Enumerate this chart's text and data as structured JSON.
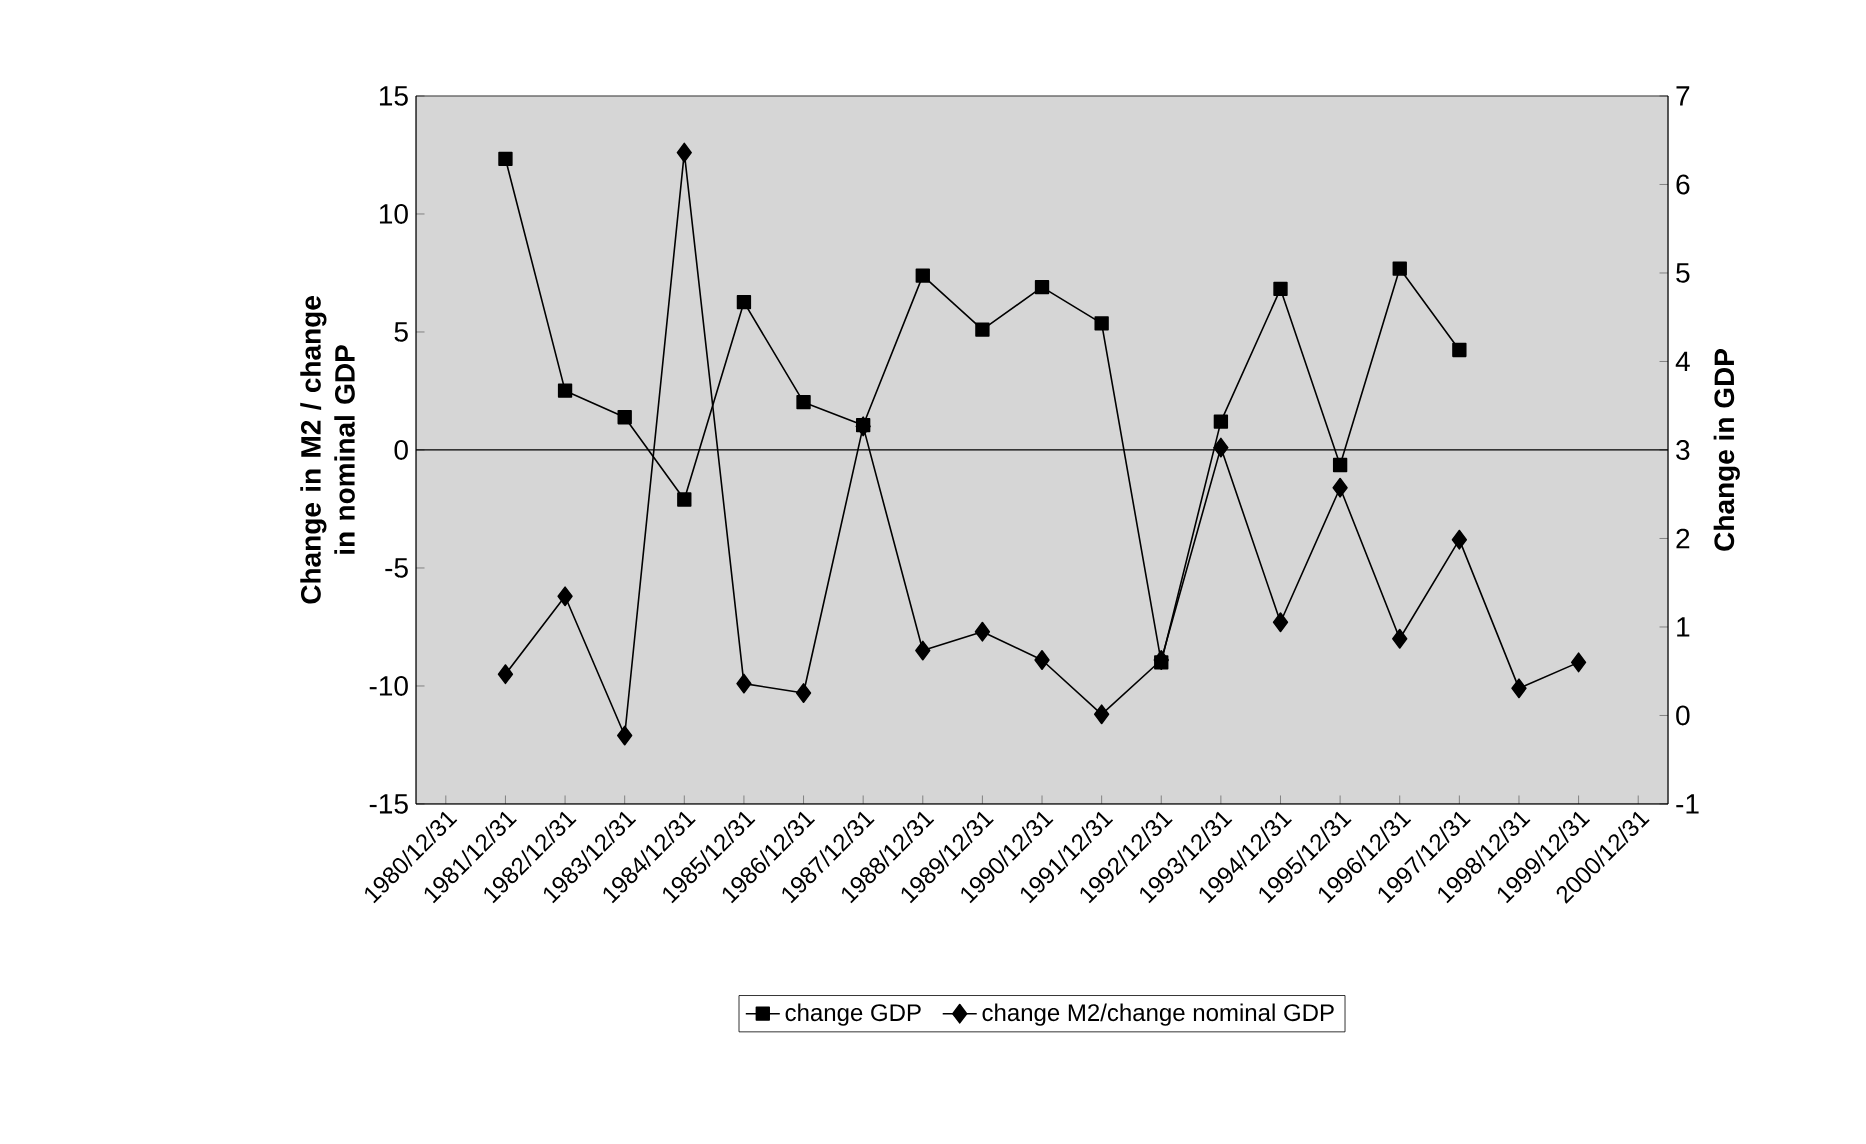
{
  "chart_data": {
    "type": "line",
    "categories": [
      "1980/12/31",
      "1981/12/31",
      "1982/12/31",
      "1983/12/31",
      "1984/12/31",
      "1985/12/31",
      "1986/12/31",
      "1987/12/31",
      "1988/12/31",
      "1989/12/31",
      "1990/12/31",
      "1991/12/31",
      "1992/12/31",
      "1993/12/31",
      "1994/12/31",
      "1995/12/31",
      "1996/12/31",
      "1997/12/31",
      "1998/12/31",
      "1999/12/31",
      "2000/12/31"
    ],
    "ylabel": "Change in M2 / change in nominal GDP",
    "y2label": "Change in GDP",
    "ylim": [
      -15,
      15
    ],
    "yticks": [
      -15,
      -10,
      -5,
      0,
      5,
      10,
      15
    ],
    "y2lim": [
      -1,
      7
    ],
    "y2ticks": [
      -1,
      0,
      1,
      2,
      3,
      4,
      5,
      6,
      7
    ],
    "legend": "bottom",
    "grid": false,
    "ref_lines": [
      {
        "axis": "y",
        "value": 0,
        "color": "#000000"
      }
    ],
    "series": [
      {
        "name": "change GDP",
        "color": "#000000",
        "axis": "y2",
        "marker": "square",
        "values": [
          null,
          6.29,
          3.67,
          3.37,
          2.44,
          4.67,
          3.54,
          3.28,
          4.97,
          4.36,
          4.84,
          4.43,
          0.6,
          3.32,
          4.82,
          2.83,
          5.05,
          4.13,
          null,
          null,
          null
        ]
      },
      {
        "name": "change M2/change nominal GDP",
        "color": "#000000",
        "axis": "y",
        "marker": "diamond",
        "values": [
          null,
          -9.5,
          -6.2,
          -12.1,
          12.6,
          -9.9,
          -10.3,
          1.0,
          -8.5,
          -7.7,
          -8.9,
          -11.2,
          -8.9,
          0.1,
          -7.3,
          -1.6,
          -8.0,
          -3.8,
          -10.1,
          -9.0,
          null
        ]
      }
    ]
  }
}
